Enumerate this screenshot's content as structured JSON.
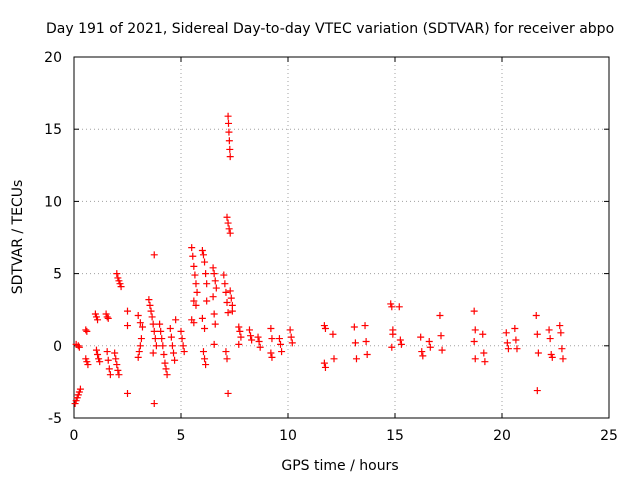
{
  "chart_data": {
    "type": "scatter",
    "title": "Day 191 of 2021, Sidereal Day-to-day VTEC variation (SDTVAR) for receiver abpo",
    "xlabel": "GPS time / hours",
    "ylabel": "SDTVAR / TECUs",
    "xlim": [
      0,
      25
    ],
    "ylim": [
      -5,
      20
    ],
    "xticks": [
      "0",
      "5",
      "10",
      "15",
      "20",
      "25"
    ],
    "yticks": [
      "-5",
      "0",
      "5",
      "10",
      "15",
      "20"
    ],
    "grid": true,
    "marker": "+",
    "color": "#ff0000",
    "series": [
      {
        "name": "SDTVAR",
        "points": [
          [
            0.05,
            -4.0
          ],
          [
            0.1,
            -3.8
          ],
          [
            0.15,
            -3.6
          ],
          [
            0.2,
            -3.4
          ],
          [
            0.25,
            -3.2
          ],
          [
            0.3,
            -3.0
          ],
          [
            0.1,
            0.1
          ],
          [
            0.2,
            0.0
          ],
          [
            0.25,
            -0.1
          ],
          [
            0.55,
            1.1
          ],
          [
            0.6,
            1.0
          ],
          [
            0.55,
            -0.9
          ],
          [
            0.6,
            -1.1
          ],
          [
            0.65,
            -1.3
          ],
          [
            1.0,
            2.2
          ],
          [
            1.05,
            2.0
          ],
          [
            1.1,
            1.8
          ],
          [
            1.05,
            -0.3
          ],
          [
            1.1,
            -0.6
          ],
          [
            1.15,
            -0.9
          ],
          [
            1.2,
            -1.1
          ],
          [
            1.5,
            2.2
          ],
          [
            1.55,
            2.0
          ],
          [
            1.6,
            1.9
          ],
          [
            1.55,
            -0.4
          ],
          [
            1.6,
            -1.0
          ],
          [
            1.65,
            -1.6
          ],
          [
            1.7,
            -2.0
          ],
          [
            1.9,
            -0.5
          ],
          [
            1.95,
            -0.9
          ],
          [
            2.0,
            -1.3
          ],
          [
            2.05,
            -1.7
          ],
          [
            2.1,
            -2.0
          ],
          [
            2.0,
            5.0
          ],
          [
            2.05,
            4.7
          ],
          [
            2.1,
            4.5
          ],
          [
            2.15,
            4.3
          ],
          [
            2.2,
            4.1
          ],
          [
            2.5,
            2.4
          ],
          [
            2.5,
            1.4
          ],
          [
            2.5,
            -3.3
          ],
          [
            3.0,
            -0.8
          ],
          [
            3.05,
            -0.4
          ],
          [
            3.1,
            0.0
          ],
          [
            3.15,
            0.5
          ],
          [
            3.0,
            2.1
          ],
          [
            3.1,
            1.6
          ],
          [
            3.2,
            1.3
          ],
          [
            3.5,
            3.2
          ],
          [
            3.55,
            2.8
          ],
          [
            3.6,
            2.4
          ],
          [
            3.65,
            2.0
          ],
          [
            3.7,
            1.5
          ],
          [
            3.75,
            1.0
          ],
          [
            3.8,
            0.5
          ],
          [
            3.85,
            0.0
          ],
          [
            3.7,
            -0.5
          ],
          [
            3.75,
            -4.0
          ],
          [
            3.75,
            6.3
          ],
          [
            4.0,
            1.5
          ],
          [
            4.05,
            1.0
          ],
          [
            4.1,
            0.5
          ],
          [
            4.15,
            0.0
          ],
          [
            4.2,
            -0.6
          ],
          [
            4.25,
            -1.2
          ],
          [
            4.3,
            -1.6
          ],
          [
            4.35,
            -2.0
          ],
          [
            4.5,
            1.2
          ],
          [
            4.55,
            0.6
          ],
          [
            4.6,
            0.0
          ],
          [
            4.65,
            -0.5
          ],
          [
            4.7,
            -1.0
          ],
          [
            4.75,
            1.8
          ],
          [
            5.0,
            1.0
          ],
          [
            5.05,
            0.5
          ],
          [
            5.1,
            0.0
          ],
          [
            5.15,
            -0.4
          ],
          [
            5.5,
            6.8
          ],
          [
            5.55,
            6.2
          ],
          [
            5.6,
            5.5
          ],
          [
            5.65,
            4.9
          ],
          [
            5.7,
            4.3
          ],
          [
            5.75,
            3.7
          ],
          [
            5.6,
            3.1
          ],
          [
            5.7,
            2.8
          ],
          [
            5.5,
            1.8
          ],
          [
            5.6,
            1.6
          ],
          [
            6.0,
            6.6
          ],
          [
            6.05,
            6.3
          ],
          [
            6.1,
            5.8
          ],
          [
            6.15,
            5.0
          ],
          [
            6.2,
            4.3
          ],
          [
            6.0,
            1.9
          ],
          [
            6.1,
            1.2
          ],
          [
            6.05,
            -0.4
          ],
          [
            6.1,
            -0.9
          ],
          [
            6.15,
            -1.3
          ],
          [
            6.2,
            3.1
          ],
          [
            6.5,
            5.4
          ],
          [
            6.55,
            5.0
          ],
          [
            6.6,
            4.5
          ],
          [
            6.65,
            4.0
          ],
          [
            6.5,
            3.4
          ],
          [
            6.55,
            2.2
          ],
          [
            6.6,
            1.5
          ],
          [
            6.55,
            0.1
          ],
          [
            7.0,
            4.9
          ],
          [
            7.05,
            4.3
          ],
          [
            7.1,
            3.7
          ],
          [
            7.15,
            3.0
          ],
          [
            7.2,
            2.3
          ],
          [
            7.1,
            -0.4
          ],
          [
            7.15,
            -0.9
          ],
          [
            7.2,
            -3.3
          ],
          [
            7.2,
            15.9
          ],
          [
            7.22,
            15.4
          ],
          [
            7.24,
            14.8
          ],
          [
            7.26,
            14.2
          ],
          [
            7.28,
            13.6
          ],
          [
            7.3,
            13.1
          ],
          [
            7.15,
            8.9
          ],
          [
            7.2,
            8.5
          ],
          [
            7.25,
            8.1
          ],
          [
            7.3,
            7.8
          ],
          [
            7.3,
            3.8
          ],
          [
            7.35,
            3.3
          ],
          [
            7.4,
            2.8
          ],
          [
            7.4,
            2.4
          ],
          [
            7.7,
            1.3
          ],
          [
            7.75,
            1.0
          ],
          [
            7.8,
            0.6
          ],
          [
            7.7,
            0.1
          ],
          [
            8.2,
            1.1
          ],
          [
            8.25,
            0.7
          ],
          [
            8.3,
            0.4
          ],
          [
            8.6,
            0.6
          ],
          [
            8.65,
            0.3
          ],
          [
            8.7,
            -0.1
          ],
          [
            9.2,
            1.2
          ],
          [
            9.25,
            0.5
          ],
          [
            9.2,
            -0.5
          ],
          [
            9.25,
            -0.8
          ],
          [
            9.6,
            0.5
          ],
          [
            9.65,
            0.1
          ],
          [
            9.7,
            -0.4
          ],
          [
            10.1,
            1.1
          ],
          [
            10.15,
            0.6
          ],
          [
            10.2,
            0.2
          ],
          [
            11.7,
            1.4
          ],
          [
            11.75,
            1.2
          ],
          [
            11.7,
            -1.2
          ],
          [
            11.75,
            -1.5
          ],
          [
            12.1,
            0.8
          ],
          [
            12.15,
            -0.9
          ],
          [
            13.1,
            1.3
          ],
          [
            13.15,
            0.2
          ],
          [
            13.2,
            -0.9
          ],
          [
            13.6,
            1.4
          ],
          [
            13.65,
            0.3
          ],
          [
            13.7,
            -0.6
          ],
          [
            14.8,
            2.9
          ],
          [
            14.85,
            2.7
          ],
          [
            14.9,
            1.1
          ],
          [
            14.9,
            0.8
          ],
          [
            14.85,
            -0.1
          ],
          [
            15.2,
            2.7
          ],
          [
            15.25,
            0.4
          ],
          [
            15.3,
            0.1
          ],
          [
            16.2,
            0.6
          ],
          [
            16.25,
            -0.4
          ],
          [
            16.3,
            -0.7
          ],
          [
            16.6,
            0.3
          ],
          [
            16.65,
            -0.1
          ],
          [
            17.1,
            2.1
          ],
          [
            17.15,
            0.7
          ],
          [
            17.2,
            -0.3
          ],
          [
            18.7,
            2.4
          ],
          [
            18.75,
            1.1
          ],
          [
            18.7,
            0.3
          ],
          [
            18.75,
            -0.9
          ],
          [
            19.1,
            0.8
          ],
          [
            19.15,
            -0.5
          ],
          [
            19.2,
            -1.1
          ],
          [
            20.2,
            0.9
          ],
          [
            20.25,
            0.2
          ],
          [
            20.3,
            -0.2
          ],
          [
            20.6,
            1.2
          ],
          [
            20.65,
            0.4
          ],
          [
            20.7,
            -0.2
          ],
          [
            21.6,
            2.1
          ],
          [
            21.65,
            0.8
          ],
          [
            21.7,
            -0.5
          ],
          [
            21.65,
            -3.1
          ],
          [
            22.2,
            1.1
          ],
          [
            22.25,
            0.5
          ],
          [
            22.3,
            -0.6
          ],
          [
            22.35,
            -0.8
          ],
          [
            22.7,
            1.4
          ],
          [
            22.75,
            0.9
          ],
          [
            22.8,
            -0.2
          ],
          [
            22.85,
            -0.9
          ]
        ]
      }
    ]
  }
}
